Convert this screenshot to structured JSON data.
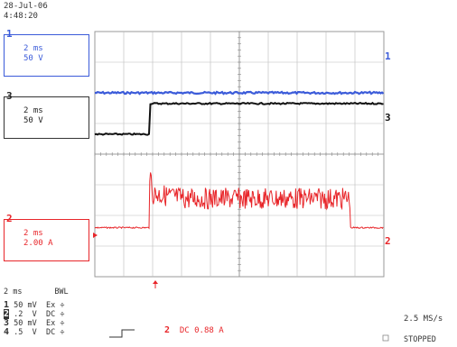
{
  "timestamp": {
    "date": "28-Jul-06",
    "time": "4:48:20"
  },
  "channel_boxes": [
    {
      "num": "1",
      "time_div": "2 ms",
      "volt_div": "50 V",
      "color": "#3b5bd9"
    },
    {
      "num": "3",
      "time_div": "2 ms",
      "volt_div": "50 V",
      "color": "#222222"
    },
    {
      "num": "2",
      "time_div": "2 ms",
      "volt_div": "2.00 A",
      "color": "#e8262a"
    }
  ],
  "right_markers": [
    "1",
    "3",
    "2"
  ],
  "timebase": {
    "value": "2 ms",
    "bwl": "BWL"
  },
  "channel_settings": [
    {
      "num": "1",
      "text": "50 mV  Ex ÷"
    },
    {
      "num": "2",
      "text": ".2  V  DC ÷"
    },
    {
      "num": "3",
      "text": "50 mV  Ex ÷"
    },
    {
      "num": "4",
      "text": ".5  V  DC ÷"
    }
  ],
  "trigger": {
    "channel": "2",
    "text": "DC 0.88 A"
  },
  "sample_rate": "2.5 MS/s",
  "status": "STOPPED",
  "colors": {
    "ch1": "#3b5bd9",
    "ch2": "#e8262a",
    "ch3": "#111111",
    "grid": "#bbbbbb"
  },
  "waveforms": {
    "ch1": {
      "level_div": 2.0
    },
    "ch3_before": {
      "level_div": 3.35
    },
    "ch3_after": {
      "level_div": 2.35
    },
    "ch2_idle": {
      "level_div": 6.4
    },
    "ch2_active": {
      "level_div": 5.45,
      "ripple_div": 0.35
    },
    "step_time_div": 1.9,
    "ch2_stop_time_div": 8.85,
    "grid_divs": {
      "x": 10,
      "y": 8
    }
  }
}
